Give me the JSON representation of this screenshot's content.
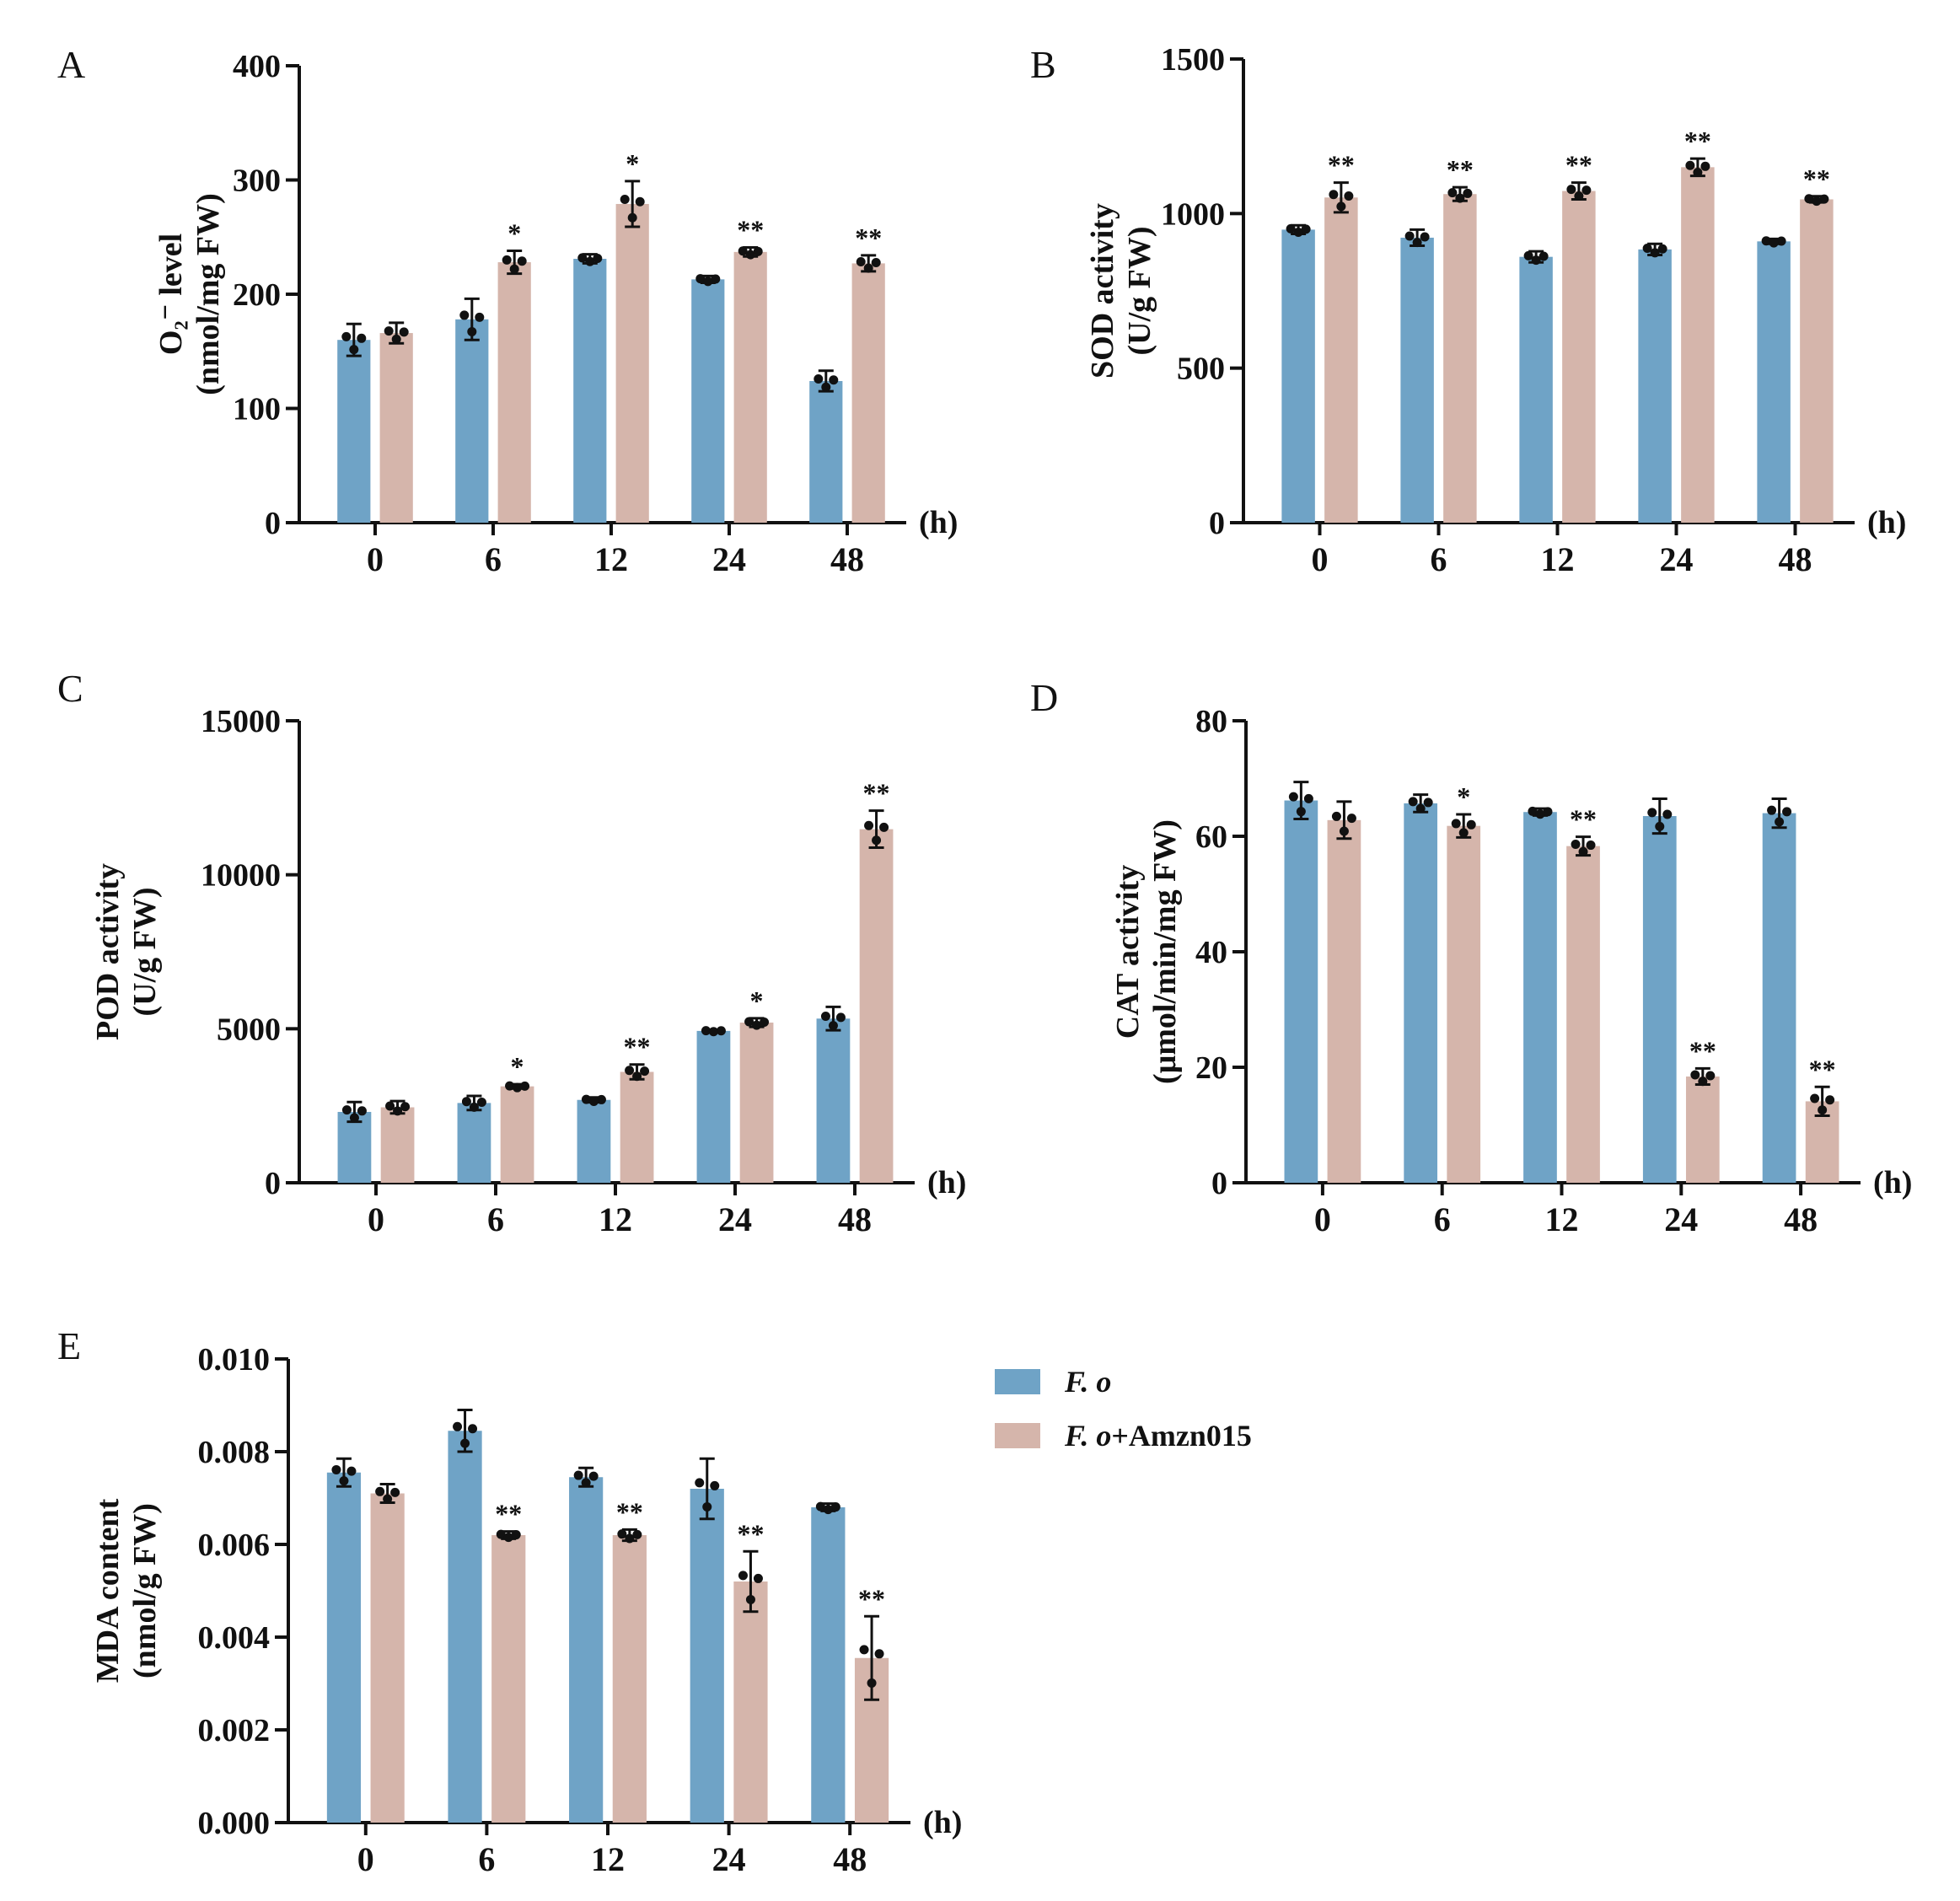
{
  "colors": {
    "control": "#6fa3c6",
    "treated": "#d5b5ab",
    "axis": "#111111"
  },
  "legend": {
    "control_label": "F. o",
    "treated_label": "+Amzn015",
    "treated_prefix": "F. o"
  },
  "chart_data": [
    {
      "panel": "A",
      "type": "bar",
      "ylabel_lines": [
        "O₂⁻ level",
        "(nmol/mg FW)"
      ],
      "categories": [
        "0",
        "6",
        "12",
        "24",
        "48"
      ],
      "unit_label": "(h)",
      "ylim": [
        0,
        400
      ],
      "yticks": [
        "0",
        "100",
        "200",
        "300",
        "400"
      ],
      "series": [
        {
          "name": "F. o",
          "values": [
            160,
            178,
            231,
            213,
            124
          ],
          "errors": [
            14,
            18,
            4,
            3,
            9
          ]
        },
        {
          "name": "F. o+Amzn015",
          "values": [
            166,
            228,
            279,
            237,
            227
          ],
          "errors": [
            9,
            10,
            20,
            4,
            7
          ]
        }
      ],
      "significance": [
        "",
        "*",
        "*",
        "**",
        "**"
      ]
    },
    {
      "panel": "B",
      "type": "bar",
      "ylabel_lines": [
        "SOD activity",
        "(U/g FW)"
      ],
      "categories": [
        "0",
        "6",
        "12",
        "24",
        "48"
      ],
      "unit_label": "(h)",
      "ylim": [
        0,
        1500
      ],
      "yticks": [
        "0",
        "500",
        "1000",
        "1500"
      ],
      "series": [
        {
          "name": "F. o",
          "values": [
            948,
            922,
            860,
            884,
            910
          ],
          "errors": [
            14,
            26,
            18,
            18,
            8
          ]
        },
        {
          "name": "F. o+Amzn015",
          "values": [
            1052,
            1063,
            1073,
            1150,
            1046
          ],
          "errors": [
            48,
            22,
            27,
            28,
            10
          ]
        }
      ],
      "significance": [
        "**",
        "**",
        "**",
        "**",
        "**"
      ]
    },
    {
      "panel": "C",
      "type": "bar",
      "ylabel_lines": [
        "POD activity",
        "(U/g FW)"
      ],
      "categories": [
        "0",
        "6",
        "12",
        "24",
        "48"
      ],
      "unit_label": "(h)",
      "ylim": [
        0,
        15000
      ],
      "yticks": [
        "0",
        "5000",
        "10000",
        "15000"
      ],
      "series": [
        {
          "name": "F. o",
          "values": [
            2300,
            2590,
            2690,
            4930,
            5330
          ],
          "errors": [
            320,
            230,
            80,
            40,
            380
          ]
        },
        {
          "name": "F. o+Amzn015",
          "values": [
            2450,
            3130,
            3600,
            5200,
            11480
          ],
          "errors": [
            200,
            70,
            240,
            140,
            600
          ]
        }
      ],
      "significance": [
        "",
        "*",
        "**",
        "*",
        "**"
      ]
    },
    {
      "panel": "D",
      "type": "bar",
      "ylabel_lines": [
        "CAT activity",
        "(μmol/min/mg FW)"
      ],
      "categories": [
        "0",
        "6",
        "12",
        "24",
        "48"
      ],
      "unit_label": "(h)",
      "ylim": [
        0,
        80
      ],
      "yticks": [
        "0",
        "20",
        "40",
        "60",
        "80"
      ],
      "series": [
        {
          "name": "F. o",
          "values": [
            66.2,
            65.7,
            64.2,
            63.5,
            64.0
          ],
          "errors": [
            3.2,
            1.5,
            0.6,
            3.0,
            2.5
          ]
        },
        {
          "name": "F. o+Amzn015",
          "values": [
            62.8,
            61.8,
            58.3,
            18.4,
            14.1
          ],
          "errors": [
            3.2,
            2.0,
            1.6,
            1.4,
            2.5
          ]
        }
      ],
      "significance": [
        "",
        "*",
        "**",
        "**",
        "**"
      ]
    },
    {
      "panel": "E",
      "type": "bar",
      "ylabel_lines": [
        "MDA content",
        "(nmol/g FW)"
      ],
      "categories": [
        "0",
        "6",
        "12",
        "24",
        "48"
      ],
      "unit_label": "(h)",
      "ylim": [
        0,
        0.01
      ],
      "yticks": [
        "0.000",
        "0.002",
        "0.004",
        "0.006",
        "0.008",
        "0.010"
      ],
      "series": [
        {
          "name": "F. o",
          "values": [
            0.00755,
            0.00845,
            0.00745,
            0.0072,
            0.0068
          ],
          "errors": [
            0.0003,
            0.00045,
            0.0002,
            0.00065,
            8e-05
          ]
        },
        {
          "name": "F. o+Amzn015",
          "values": [
            0.0071,
            0.0062,
            0.0062,
            0.0052,
            0.00355
          ],
          "errors": [
            0.0002,
            8e-05,
            0.00012,
            0.00065,
            0.0009
          ]
        }
      ],
      "significance": [
        "",
        "**",
        "**",
        "**",
        "**"
      ]
    }
  ]
}
